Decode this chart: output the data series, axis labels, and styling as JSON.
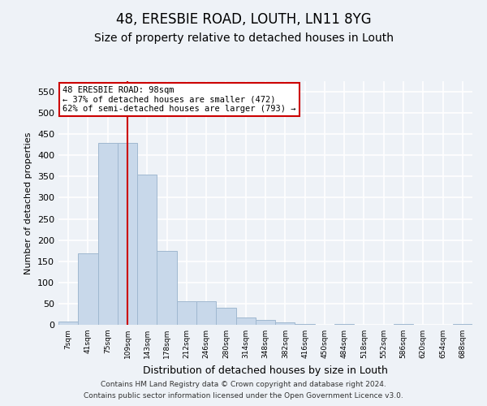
{
  "title1": "48, ERESBIE ROAD, LOUTH, LN11 8YG",
  "title2": "Size of property relative to detached houses in Louth",
  "xlabel": "Distribution of detached houses by size in Louth",
  "ylabel": "Number of detached properties",
  "categories": [
    "7sqm",
    "41sqm",
    "75sqm",
    "109sqm",
    "143sqm",
    "178sqm",
    "212sqm",
    "246sqm",
    "280sqm",
    "314sqm",
    "348sqm",
    "382sqm",
    "416sqm",
    "450sqm",
    "484sqm",
    "518sqm",
    "552sqm",
    "586sqm",
    "620sqm",
    "654sqm",
    "688sqm"
  ],
  "values": [
    7,
    168,
    430,
    430,
    355,
    175,
    55,
    55,
    40,
    17,
    12,
    5,
    2,
    0,
    2,
    0,
    0,
    1,
    0,
    0,
    2
  ],
  "bar_color": "#c8d8ea",
  "bar_edge_color": "#a0b8d0",
  "red_line_index": 3,
  "annotation_text_line1": "48 ERESBIE ROAD: 98sqm",
  "annotation_text_line2": "← 37% of detached houses are smaller (472)",
  "annotation_text_line3": "62% of semi-detached houses are larger (793) →",
  "annotation_box_color": "#ffffff",
  "annotation_box_edge_color": "#cc0000",
  "ylim": [
    0,
    575
  ],
  "yticks": [
    0,
    50,
    100,
    150,
    200,
    250,
    300,
    350,
    400,
    450,
    500,
    550
  ],
  "footer1": "Contains HM Land Registry data © Crown copyright and database right 2024.",
  "footer2": "Contains public sector information licensed under the Open Government Licence v3.0.",
  "bg_color": "#eef2f7",
  "grid_color": "#ffffff",
  "title1_fontsize": 12,
  "title2_fontsize": 10
}
